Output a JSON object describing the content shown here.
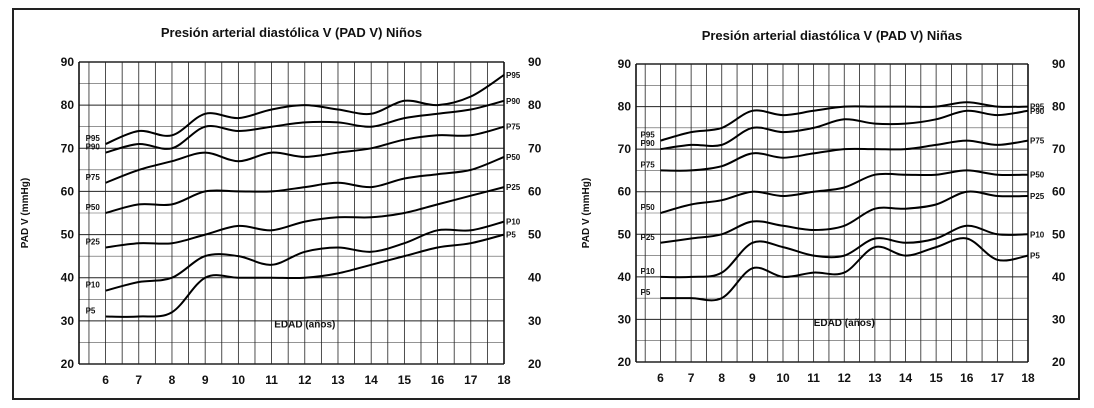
{
  "chart_data": [
    {
      "type": "line",
      "title": "Presión arterial diastólica V (PAD V) Niños",
      "xlabel": "EDAD (años)",
      "ylabel": "PAD V (mmHg)",
      "x": [
        6,
        7,
        8,
        9,
        10,
        11,
        12,
        13,
        14,
        15,
        16,
        17,
        18
      ],
      "xlim": [
        5.2,
        18
      ],
      "ylim": [
        20,
        90
      ],
      "y_ticks": [
        20,
        30,
        40,
        50,
        60,
        70,
        80,
        90
      ],
      "grid": true,
      "series": [
        {
          "name": "P95",
          "values": [
            71,
            74,
            73,
            78,
            77,
            79,
            80,
            79,
            78,
            81,
            80,
            82,
            87
          ]
        },
        {
          "name": "P90",
          "values": [
            69,
            71,
            70,
            75,
            74,
            75,
            76,
            76,
            75,
            77,
            78,
            79,
            81
          ]
        },
        {
          "name": "P75",
          "values": [
            62,
            65,
            67,
            69,
            67,
            69,
            68,
            69,
            70,
            72,
            73,
            73,
            75
          ]
        },
        {
          "name": "P50",
          "values": [
            55,
            57,
            57,
            60,
            60,
            60,
            61,
            62,
            61,
            63,
            64,
            65,
            68
          ]
        },
        {
          "name": "P25",
          "values": [
            47,
            48,
            48,
            50,
            52,
            51,
            53,
            54,
            54,
            55,
            57,
            59,
            61
          ]
        },
        {
          "name": "P10",
          "values": [
            37,
            39,
            40,
            45,
            45,
            43,
            46,
            47,
            46,
            48,
            51,
            51,
            53
          ]
        },
        {
          "name": "P5",
          "values": [
            31,
            31,
            32,
            40,
            40,
            40,
            40,
            41,
            43,
            45,
            47,
            48,
            50
          ]
        }
      ]
    },
    {
      "type": "line",
      "title": "Presión arterial diastólica V (PAD V) Niñas",
      "xlabel": "EDAD (años)",
      "ylabel": "PAD V (mmHg)",
      "x": [
        6,
        7,
        8,
        9,
        10,
        11,
        12,
        13,
        14,
        15,
        16,
        17,
        18
      ],
      "xlim": [
        5.2,
        18
      ],
      "ylim": [
        20,
        90
      ],
      "y_ticks": [
        20,
        30,
        40,
        50,
        60,
        70,
        80,
        90
      ],
      "grid": true,
      "series": [
        {
          "name": "P95",
          "values": [
            72,
            74,
            75,
            79,
            78,
            79,
            80,
            80,
            80,
            80,
            81,
            80,
            80
          ]
        },
        {
          "name": "P90",
          "values": [
            70,
            71,
            71,
            75,
            74,
            75,
            77,
            76,
            76,
            77,
            79,
            78,
            79
          ]
        },
        {
          "name": "P75",
          "values": [
            65,
            65,
            66,
            69,
            68,
            69,
            70,
            70,
            70,
            71,
            72,
            71,
            72
          ]
        },
        {
          "name": "P50",
          "values": [
            55,
            57,
            58,
            60,
            59,
            60,
            61,
            64,
            64,
            64,
            65,
            64,
            64
          ]
        },
        {
          "name": "P25",
          "values": [
            48,
            49,
            50,
            53,
            52,
            51,
            52,
            56,
            56,
            57,
            60,
            59,
            59
          ]
        },
        {
          "name": "P10",
          "values": [
            40,
            40,
            41,
            48,
            47,
            45,
            45,
            49,
            48,
            49,
            52,
            50,
            50
          ]
        },
        {
          "name": "P5",
          "values": [
            35,
            35,
            35,
            42,
            40,
            41,
            41,
            47,
            45,
            47,
            49,
            44,
            45
          ]
        }
      ]
    }
  ]
}
